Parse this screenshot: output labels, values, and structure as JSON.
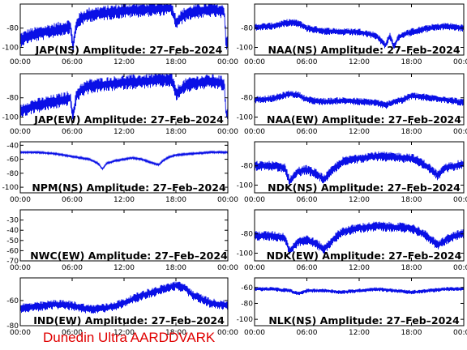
{
  "footer": {
    "text": "Dunedin Ultra AARDDVARK",
    "color": "#e00000"
  },
  "colors": {
    "trace": "#0a10e6",
    "axes": "#000000",
    "background": "#ffffff"
  },
  "chart_data": [
    {
      "type": "line",
      "title": "JAP(NS) Amplitude: 27–Feb–2024",
      "xticks": [
        "00:00",
        "06:00",
        "12:00",
        "18:00",
        "00:00"
      ],
      "yticks": [
        -80,
        -100
      ],
      "ylim": [
        -108,
        -55
      ],
      "noise": 6,
      "series": [
        {
          "x": [
            0,
            1,
            2,
            3,
            4,
            5,
            5.8,
            6.1,
            6.5,
            7,
            8,
            10,
            12,
            14,
            16,
            17.5,
            18,
            19,
            20,
            21,
            22,
            23,
            23.6,
            23.8,
            24
          ],
          "values": [
            -92,
            -88,
            -86,
            -84,
            -82,
            -80,
            -78,
            -100,
            -76,
            -70,
            -66,
            -64,
            -62,
            -61,
            -60,
            -59,
            -74,
            -66,
            -63,
            -62,
            -61,
            -62,
            -64,
            -96,
            -92
          ]
        }
      ]
    },
    {
      "type": "line",
      "title": "NAA(NS) Amplitude: 27–Feb–2024",
      "xticks": [
        "00:00",
        "06:00",
        "12:00",
        "18:00",
        "00:00"
      ],
      "yticks": [
        -80,
        -100
      ],
      "ylim": [
        -108,
        -55
      ],
      "noise": 3,
      "series": [
        {
          "x": [
            0,
            2,
            4,
            5,
            6,
            8,
            10,
            12,
            13,
            14,
            15,
            15.5,
            16,
            16.5,
            17,
            18,
            20,
            22,
            24
          ],
          "values": [
            -79,
            -78,
            -74,
            -75,
            -80,
            -83,
            -84,
            -84,
            -86,
            -88,
            -98,
            -88,
            -99,
            -90,
            -87,
            -84,
            -80,
            -78,
            -80
          ]
        }
      ]
    },
    {
      "type": "line",
      "title": "JAP(EW) Amplitude: 27–Feb–2024",
      "xticks": [
        "00:00",
        "06:00",
        "12:00",
        "18:00",
        "00:00"
      ],
      "yticks": [
        -80,
        -100
      ],
      "ylim": [
        -108,
        -55
      ],
      "noise": 6,
      "series": [
        {
          "x": [
            0,
            1,
            2,
            3,
            4,
            5,
            5.8,
            6.1,
            6.5,
            7,
            8,
            10,
            12,
            14,
            16,
            17.5,
            18,
            19,
            20,
            21,
            22,
            23,
            23.6,
            23.8,
            24
          ],
          "values": [
            -94,
            -90,
            -88,
            -86,
            -84,
            -82,
            -80,
            -100,
            -78,
            -72,
            -68,
            -66,
            -64,
            -63,
            -62,
            -61,
            -76,
            -68,
            -65,
            -64,
            -63,
            -64,
            -66,
            -98,
            -94
          ]
        }
      ]
    },
    {
      "type": "line",
      "title": "NAA(EW) Amplitude: 27–Feb–2024",
      "xticks": [
        "00:00",
        "06:00",
        "12:00",
        "18:00",
        "00:00"
      ],
      "yticks": [
        -80,
        -100
      ],
      "ylim": [
        -108,
        -55
      ],
      "noise": 3,
      "series": [
        {
          "x": [
            0,
            2,
            4,
            5,
            6,
            8,
            10,
            12,
            14,
            15,
            16,
            17,
            18,
            20,
            22,
            24
          ],
          "values": [
            -82,
            -81,
            -76,
            -77,
            -82,
            -84,
            -83,
            -84,
            -85,
            -88,
            -84,
            -82,
            -78,
            -80,
            -82,
            -85
          ]
        }
      ]
    },
    {
      "type": "line",
      "title": "NPM(NS) Amplitude: 27–Feb–2024",
      "xticks": [
        "00:00",
        "06:00",
        "12:00",
        "18:00",
        "00:00"
      ],
      "yticks": [
        -40,
        -60,
        -80,
        -100
      ],
      "ylim": [
        -108,
        -35
      ],
      "noise": 1,
      "series": [
        {
          "x": [
            0,
            2,
            4,
            6,
            8,
            9,
            9.5,
            10,
            11,
            12,
            13,
            14,
            15,
            16,
            16.5,
            17,
            18,
            20,
            22,
            24
          ],
          "values": [
            -50,
            -50,
            -52,
            -56,
            -60,
            -66,
            -74,
            -66,
            -62,
            -60,
            -58,
            -60,
            -64,
            -68,
            -62,
            -58,
            -54,
            -52,
            -50,
            -50
          ]
        }
      ]
    },
    {
      "type": "line",
      "title": "NDK(NS) Amplitude: 27–Feb–2024",
      "xticks": [
        "00:00",
        "06:00",
        "12:00",
        "18:00",
        "00:00"
      ],
      "yticks": [
        -80,
        -100
      ],
      "ylim": [
        -108,
        -55
      ],
      "noise": 4,
      "series": [
        {
          "x": [
            0,
            2,
            3.5,
            4,
            5,
            6,
            7,
            8,
            9,
            10,
            12,
            14,
            16,
            18,
            19,
            20,
            21,
            22,
            23,
            24
          ],
          "values": [
            -80,
            -80,
            -82,
            -96,
            -86,
            -84,
            -88,
            -94,
            -84,
            -76,
            -72,
            -70,
            -71,
            -72,
            -76,
            -82,
            -90,
            -82,
            -80,
            -78
          ]
        }
      ]
    },
    {
      "type": "line",
      "title": "NWC(EW) Amplitude: 27–Feb–2024",
      "xticks": [
        "00:00",
        "06:00",
        "12:00",
        "18:00",
        "00:00"
      ],
      "yticks": [
        -30,
        -40,
        -50,
        -60,
        -70
      ],
      "ylim": [
        -70,
        -20
      ],
      "noise": 0,
      "series": []
    },
    {
      "type": "line",
      "title": "NDK(EW) Amplitude: 27–Feb–2024",
      "xticks": [
        "00:00",
        "06:00",
        "12:00",
        "18:00",
        "00:00"
      ],
      "yticks": [
        -80,
        -100
      ],
      "ylim": [
        -108,
        -55
      ],
      "noise": 4,
      "series": [
        {
          "x": [
            0,
            2,
            3.5,
            4,
            5,
            6,
            7,
            8,
            9,
            10,
            12,
            14,
            16,
            18,
            19,
            20,
            21,
            22,
            23,
            24
          ],
          "values": [
            -82,
            -82,
            -84,
            -98,
            -88,
            -86,
            -90,
            -96,
            -86,
            -78,
            -74,
            -72,
            -73,
            -74,
            -78,
            -84,
            -92,
            -86,
            -82,
            -80
          ]
        }
      ]
    },
    {
      "type": "line",
      "title": "IND(EW) Amplitude: 27–Feb–2024",
      "xticks": [
        "00:00",
        "06:00",
        "12:00",
        "18:00",
        "00:00"
      ],
      "yticks": [
        -60,
        -80
      ],
      "ylim": [
        -80,
        -42
      ],
      "noise": 3,
      "series": [
        {
          "x": [
            0,
            2,
            4,
            6,
            8,
            10,
            12,
            14,
            16,
            17,
            18,
            19,
            20,
            22,
            24
          ],
          "values": [
            -66,
            -65,
            -63,
            -64,
            -67,
            -66,
            -62,
            -56,
            -52,
            -50,
            -48,
            -50,
            -56,
            -62,
            -64
          ]
        }
      ]
    },
    {
      "type": "line",
      "title": "NLK(NS) Amplitude: 27–Feb–2024",
      "xticks": [
        "00:00",
        "06:00",
        "12:00",
        "18:00",
        "00:00"
      ],
      "yticks": [
        -60,
        -80,
        -100
      ],
      "ylim": [
        -108,
        -48
      ],
      "noise": 2,
      "series": [
        {
          "x": [
            0,
            2,
            4,
            5,
            6,
            8,
            10,
            12,
            14,
            16,
            18,
            20,
            22,
            24
          ],
          "values": [
            -62,
            -62,
            -64,
            -68,
            -64,
            -64,
            -66,
            -64,
            -62,
            -64,
            -66,
            -64,
            -62,
            -62
          ]
        }
      ]
    }
  ]
}
